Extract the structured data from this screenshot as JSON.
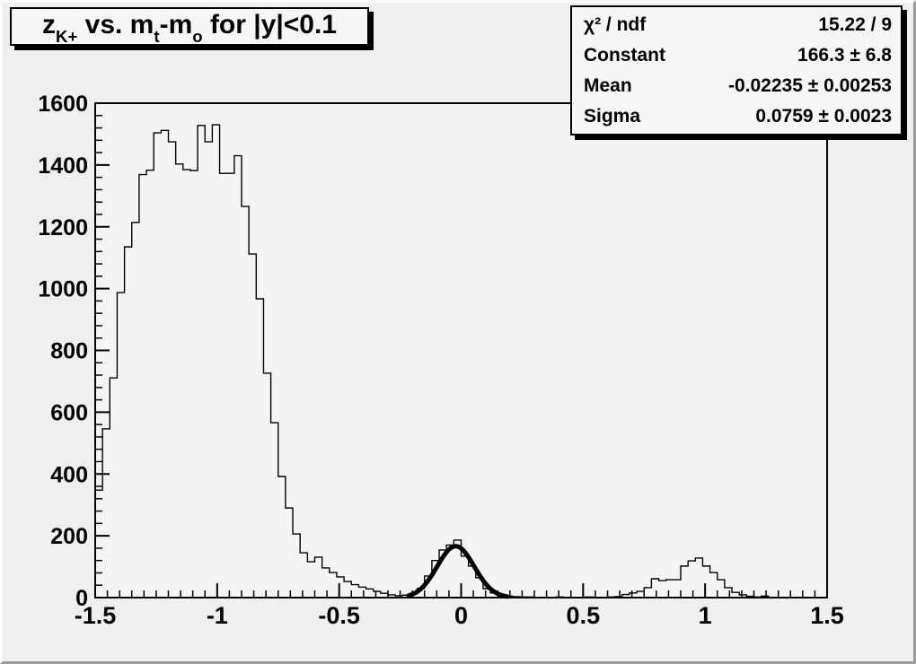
{
  "colors": {
    "canvas_bg": "#efefef",
    "frame_bg": "#f4f4f4",
    "line": "#000000",
    "box_bg": "#f6f6f6"
  },
  "title_box": {
    "segments": [
      {
        "text": "z"
      },
      {
        "sub": "K+"
      },
      {
        "text": " vs. m"
      },
      {
        "sub": "t"
      },
      {
        "text": "-m"
      },
      {
        "sub": "o"
      },
      {
        "text": " for |y|<0.1"
      }
    ]
  },
  "stats_box": {
    "rows": [
      {
        "label": "χ² / ndf",
        "value": "15.22 / 9"
      },
      {
        "label": "Constant",
        "value": "166.3 ± 6.8"
      },
      {
        "label": "Mean",
        "value": "-0.02235 ± 0.00253"
      },
      {
        "label": "Sigma",
        "value": "0.0759 ± 0.0023"
      }
    ]
  },
  "chart_data": {
    "type": "bar",
    "subtype": "step-histogram",
    "title": "zK+ vs. mt-mo for |y|<0.1",
    "xlabel": "",
    "ylabel": "",
    "x_range": [
      -1.5,
      1.5
    ],
    "y_range": [
      0,
      1600
    ],
    "grid": false,
    "x_tick_values": [
      -1.5,
      -1,
      -0.5,
      0,
      0.5,
      1,
      1.5
    ],
    "x_tick_labels": [
      "-1.5",
      "-1",
      "-0.5",
      "0",
      "0.5",
      "1",
      "1.5"
    ],
    "x_minor_step": 0.05,
    "y_tick_values": [
      0,
      200,
      400,
      600,
      800,
      1000,
      1200,
      1400,
      1600
    ],
    "y_tick_labels": [
      "0",
      "200",
      "400",
      "600",
      "800",
      "1000",
      "1200",
      "1400",
      "1600"
    ],
    "y_minor_step": 40,
    "bin_start": -1.5,
    "bin_width": 0.03,
    "values": [
      348,
      546,
      711,
      987,
      1135,
      1214,
      1369,
      1383,
      1504,
      1512,
      1475,
      1403,
      1385,
      1382,
      1528,
      1475,
      1530,
      1373,
      1373,
      1430,
      1266,
      1112,
      967,
      726,
      566,
      392,
      290,
      206,
      145,
      116,
      131,
      96,
      81,
      67,
      52,
      42,
      34,
      28,
      20,
      14,
      9,
      6,
      8,
      12,
      30,
      70,
      120,
      154,
      170,
      186,
      134,
      102,
      64,
      29,
      15,
      8,
      5,
      3,
      2,
      2,
      1,
      1,
      1,
      2,
      1,
      1,
      1,
      2,
      1,
      1,
      2,
      3,
      10,
      15,
      20,
      32,
      61,
      55,
      58,
      58,
      102,
      119,
      128,
      102,
      81,
      58,
      32,
      17,
      9,
      4,
      2,
      5,
      1,
      1,
      1,
      0,
      0,
      0,
      0,
      0
    ],
    "fit": {
      "type": "gaussian",
      "constant": 166.3,
      "mean": -0.02235,
      "sigma": 0.0759,
      "chi2": 15.22,
      "ndf": 9,
      "draw_range": [
        -0.215,
        0.19
      ]
    },
    "legend_position": "none"
  }
}
